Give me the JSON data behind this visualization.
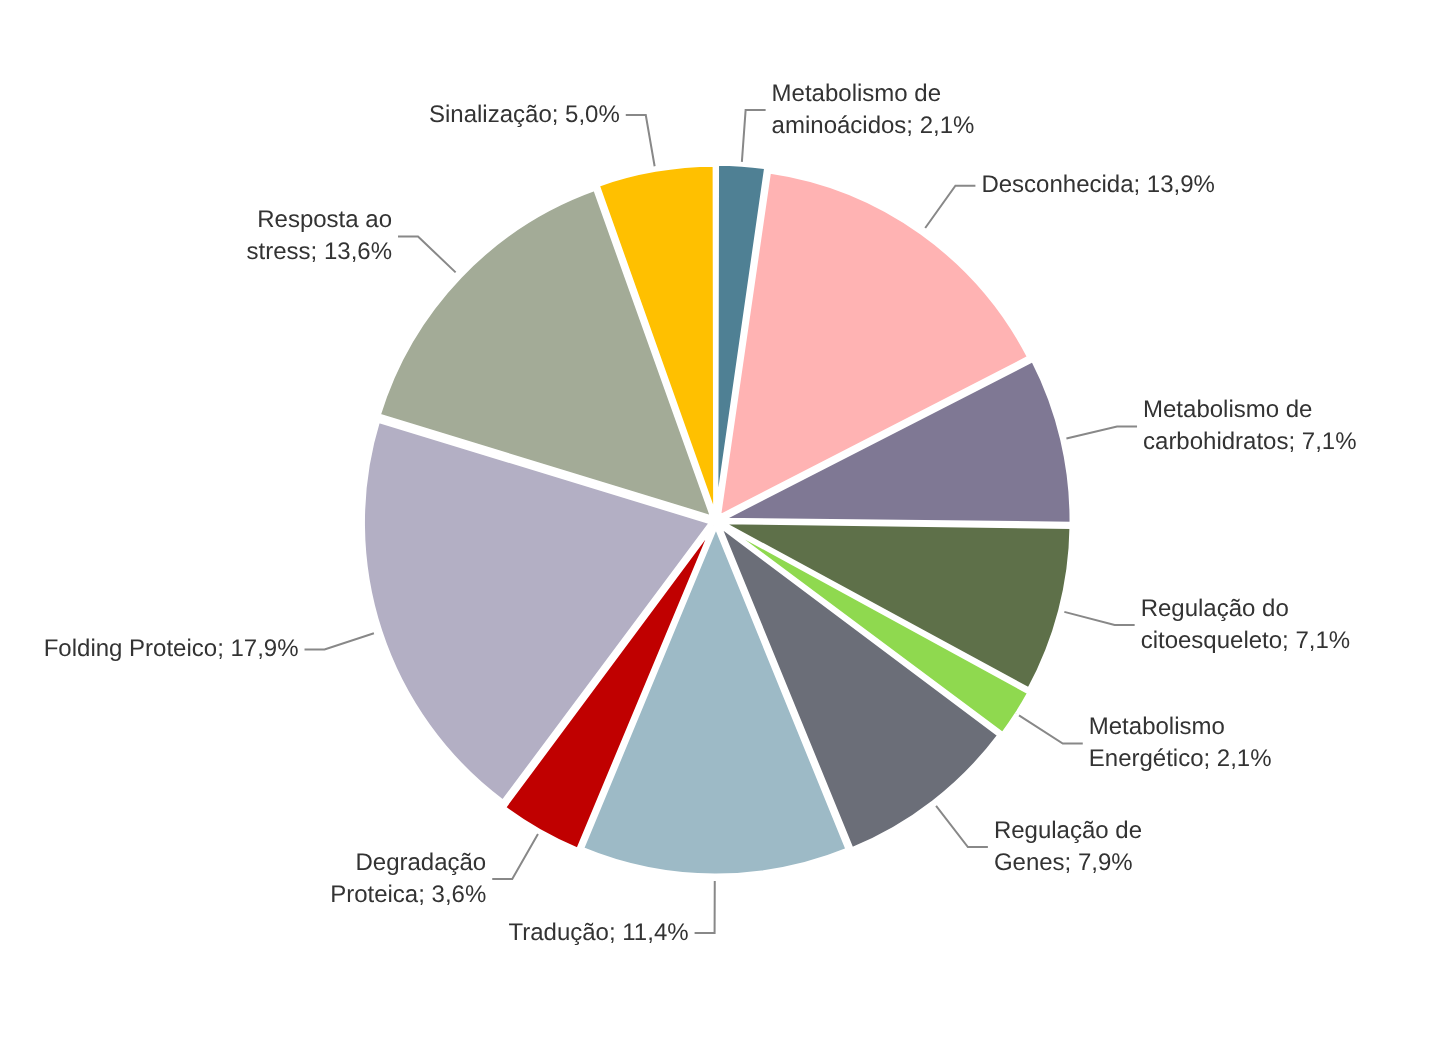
{
  "chart_data": {
    "type": "pie",
    "categories": [
      "Metabolismo de aminoácidos",
      "Desconhecida",
      "Metabolismo de carbohidratos",
      "Regulação do citoesqueleto",
      "Metabolismo Energético",
      "Regulação de Genes",
      "Tradução",
      "Degradação Proteica",
      "Folding Proteico",
      "Resposta ao stress",
      "Sinalização"
    ],
    "values": [
      2.1,
      13.9,
      7.1,
      7.1,
      2.1,
      7.9,
      11.4,
      3.6,
      17.9,
      13.6,
      5.0
    ],
    "value_labels": [
      "2,1%",
      "13,9%",
      "7,1%",
      "7,1%",
      "2,1%",
      "7,9%",
      "11,4%",
      "3,6%",
      "17,9%",
      "13,6%",
      "5,0%"
    ],
    "colors": [
      "#4f8094",
      "#ffb3b3",
      "#7f7894",
      "#5e7049",
      "#8fd94f",
      "#6b6e78",
      "#9dbac6",
      "#c00000",
      "#b3afc4",
      "#a3ab97",
      "#ffc000"
    ],
    "legend": false
  }
}
